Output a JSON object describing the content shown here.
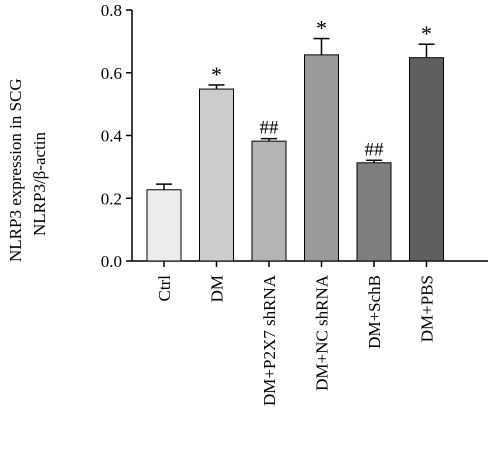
{
  "chart_data": {
    "type": "bar",
    "categories": [
      "Ctrl",
      "DM",
      "DM+P2X7 shRNA",
      "DM+NC shRNA",
      "DM+SchB",
      "DM+PBS"
    ],
    "values": [
      0.227,
      0.548,
      0.382,
      0.657,
      0.313,
      0.648
    ],
    "errors": [
      0.018,
      0.013,
      0.008,
      0.052,
      0.008,
      0.043
    ],
    "annotations": [
      "",
      "*",
      "##",
      "*",
      "##",
      "*"
    ],
    "bar_colors": [
      "#ebebeb",
      "#cbcbcb",
      "#b4b4b4",
      "#9a9a9a",
      "#7f7f7f",
      "#5f5f5f"
    ],
    "ylabel_line1": "NLRP3 expression in SCG",
    "ylabel_line2": "NLRP3/β-actin",
    "xlabel": "",
    "ylim": [
      0,
      0.8
    ],
    "yticks": [
      0.0,
      0.2,
      0.4,
      0.6,
      0.8
    ],
    "ytick_labels": [
      "0.0",
      "0.2",
      "0.4",
      "0.6",
      "0.8"
    ],
    "grid": false,
    "legend": "none"
  }
}
